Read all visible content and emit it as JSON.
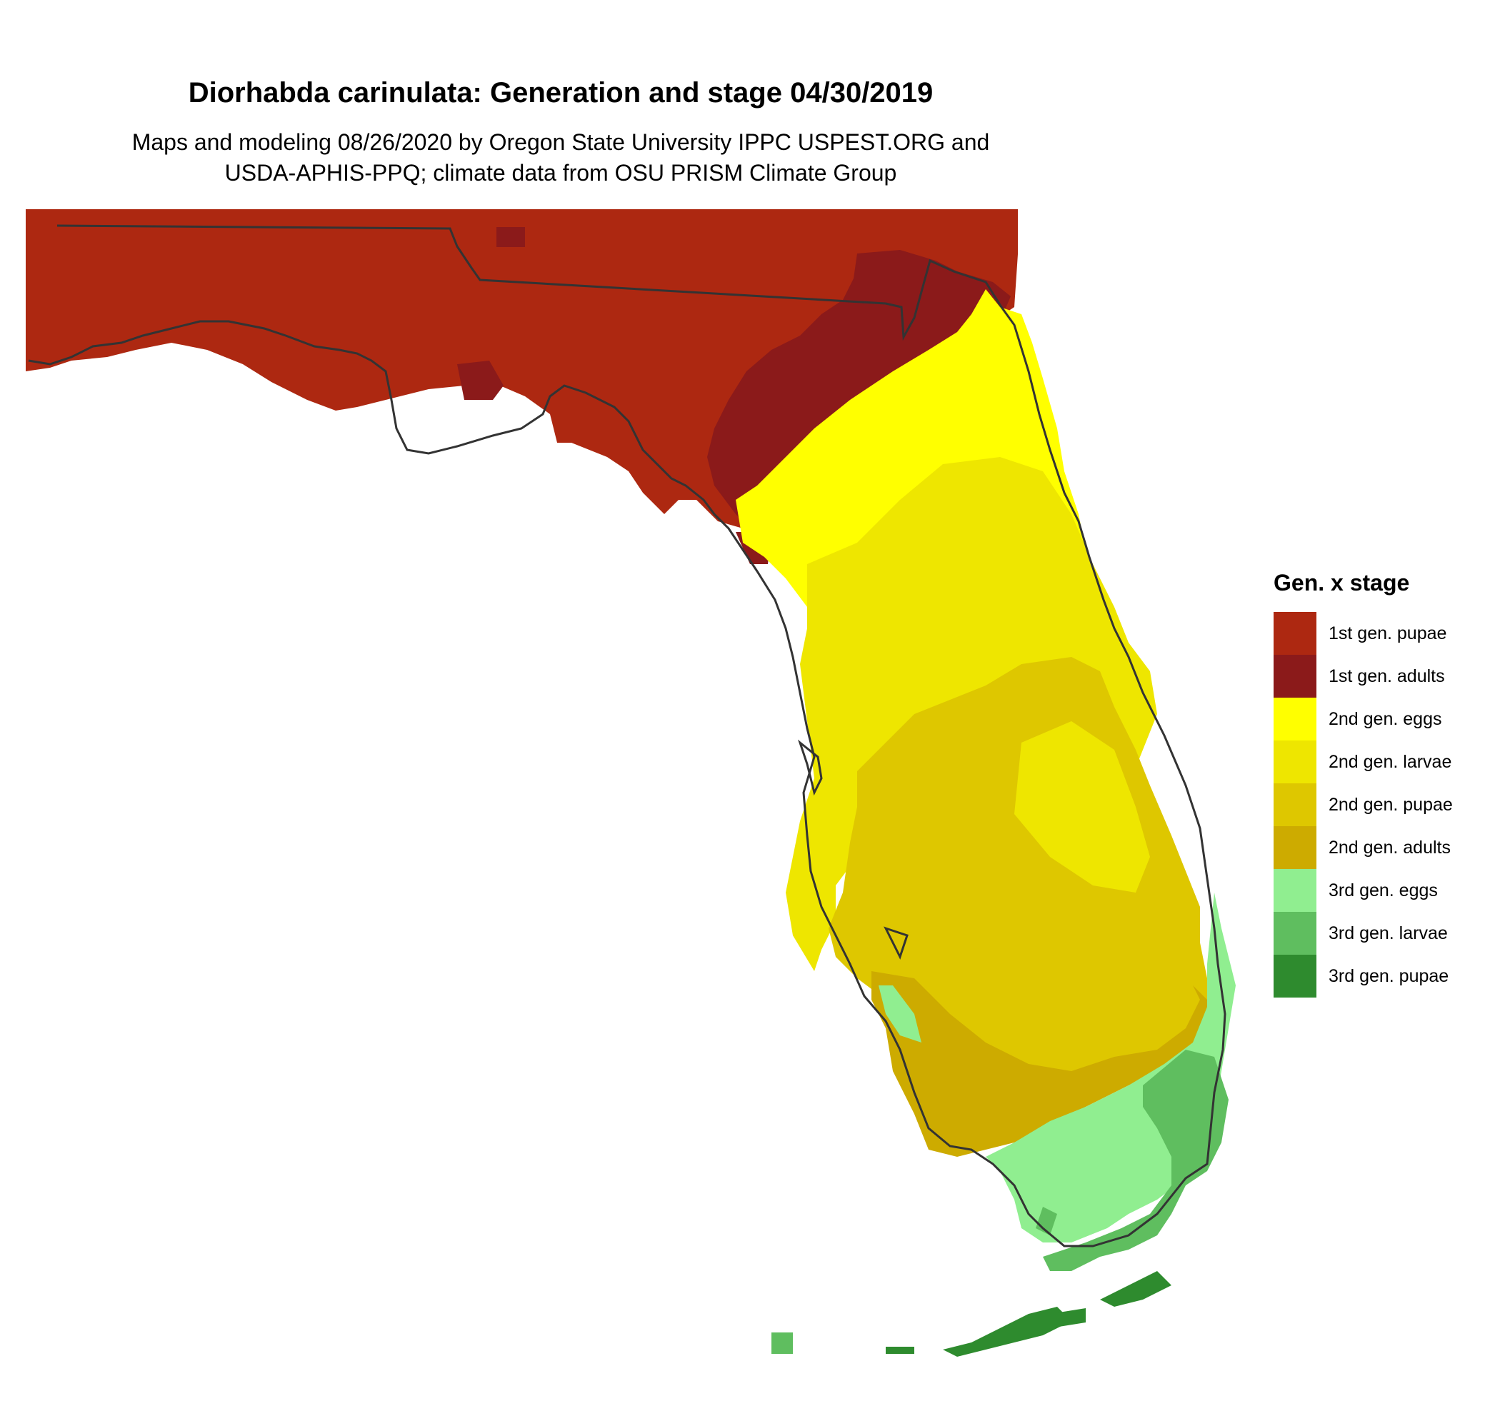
{
  "title": "Diorhabda carinulata: Generation and stage 04/30/2019",
  "subtitle": {
    "line1": "Maps and modeling 08/26/2020 by Oregon State University IPPC USPEST.ORG and",
    "line2": "USDA-APHIS-PPQ; climate data from OSU PRISM Climate Group"
  },
  "legend": {
    "title": "Gen. x stage",
    "items": [
      {
        "label": "1st gen. pupae",
        "color": "#ad2811"
      },
      {
        "label": "1st gen. adults",
        "color": "#8b1a1a"
      },
      {
        "label": "2nd gen. eggs",
        "color": "#ffff00"
      },
      {
        "label": "2nd gen. larvae",
        "color": "#eee600"
      },
      {
        "label": "2nd gen. pupae",
        "color": "#dec700"
      },
      {
        "label": "2nd gen. adults",
        "color": "#cdab00"
      },
      {
        "label": "3rd gen. eggs",
        "color": "#90ee90"
      },
      {
        "label": "3rd gen. larvae",
        "color": "#5fbe5f"
      },
      {
        "label": "3rd gen. pupae",
        "color": "#2e8b2e"
      }
    ]
  },
  "map": {
    "region": "Florida",
    "outline_color": "#333333"
  }
}
